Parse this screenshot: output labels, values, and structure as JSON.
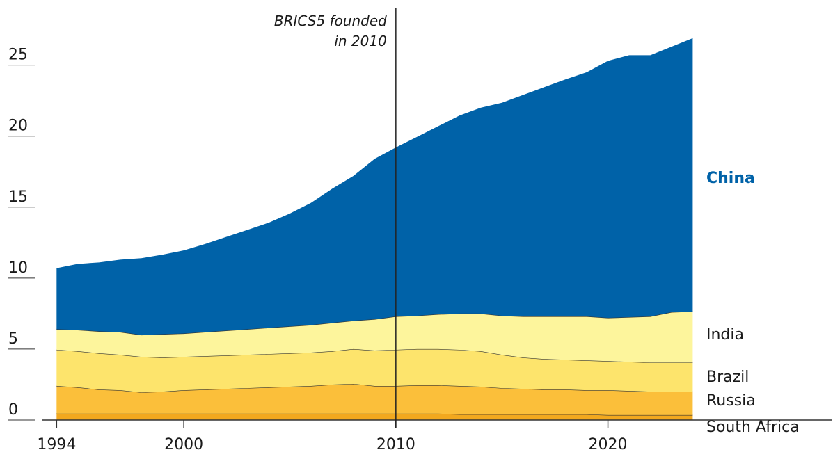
{
  "chart_data": {
    "type": "stacked_area",
    "x": [
      1994,
      1995,
      1996,
      1997,
      1998,
      1999,
      2000,
      2001,
      2002,
      2003,
      2004,
      2005,
      2006,
      2007,
      2008,
      2009,
      2010,
      2011,
      2012,
      2013,
      2014,
      2015,
      2016,
      2017,
      2018,
      2019,
      2020,
      2021,
      2022,
      2023,
      2024
    ],
    "series": [
      {
        "name": "South Africa",
        "color": "#f2a81e",
        "values": [
          0.45,
          0.45,
          0.45,
          0.45,
          0.45,
          0.45,
          0.45,
          0.45,
          0.45,
          0.45,
          0.45,
          0.45,
          0.45,
          0.45,
          0.45,
          0.45,
          0.45,
          0.45,
          0.45,
          0.4,
          0.4,
          0.4,
          0.4,
          0.4,
          0.4,
          0.4,
          0.35,
          0.35,
          0.35,
          0.35,
          0.35
        ]
      },
      {
        "name": "Russia",
        "color": "#fbbf3a",
        "values": [
          1.95,
          1.85,
          1.7,
          1.65,
          1.5,
          1.55,
          1.65,
          1.7,
          1.75,
          1.8,
          1.85,
          1.9,
          1.95,
          2.05,
          2.1,
          1.95,
          1.95,
          2.0,
          2.0,
          2.0,
          1.95,
          1.85,
          1.8,
          1.75,
          1.75,
          1.7,
          1.75,
          1.7,
          1.65,
          1.65,
          1.65
        ]
      },
      {
        "name": "Brazil",
        "color": "#fde46c",
        "values": [
          2.55,
          2.55,
          2.55,
          2.5,
          2.5,
          2.4,
          2.35,
          2.35,
          2.35,
          2.35,
          2.35,
          2.35,
          2.35,
          2.35,
          2.45,
          2.5,
          2.55,
          2.55,
          2.55,
          2.55,
          2.5,
          2.35,
          2.2,
          2.15,
          2.1,
          2.1,
          2.05,
          2.05,
          2.05,
          2.05,
          2.05
        ]
      },
      {
        "name": "India",
        "color": "#fdf59c",
        "values": [
          1.45,
          1.5,
          1.55,
          1.6,
          1.55,
          1.65,
          1.65,
          1.7,
          1.75,
          1.8,
          1.85,
          1.9,
          1.95,
          2.0,
          2.0,
          2.2,
          2.35,
          2.35,
          2.45,
          2.55,
          2.65,
          2.75,
          2.9,
          3.0,
          3.05,
          3.1,
          3.05,
          3.15,
          3.25,
          3.55,
          3.6
        ]
      },
      {
        "name": "China",
        "color": "#0062a8",
        "values": [
          4.3,
          4.65,
          4.85,
          5.1,
          5.4,
          5.6,
          5.85,
          6.2,
          6.6,
          7.0,
          7.4,
          7.95,
          8.6,
          9.45,
          10.2,
          11.3,
          11.9,
          12.6,
          13.25,
          13.95,
          14.5,
          15.0,
          15.6,
          16.15,
          16.7,
          17.2,
          18.1,
          18.45,
          18.4,
          18.7,
          19.25
        ]
      }
    ],
    "xlim": [
      1993.3,
      2030.55
    ],
    "xticks": [
      1994,
      2000,
      2010,
      2020
    ],
    "ylim": [
      0,
      29
    ],
    "yticks": [
      0,
      5,
      10,
      15,
      20,
      25
    ],
    "annotation": {
      "x": 2010,
      "lines": [
        "BRICS5 founded",
        "in 2010"
      ]
    }
  }
}
